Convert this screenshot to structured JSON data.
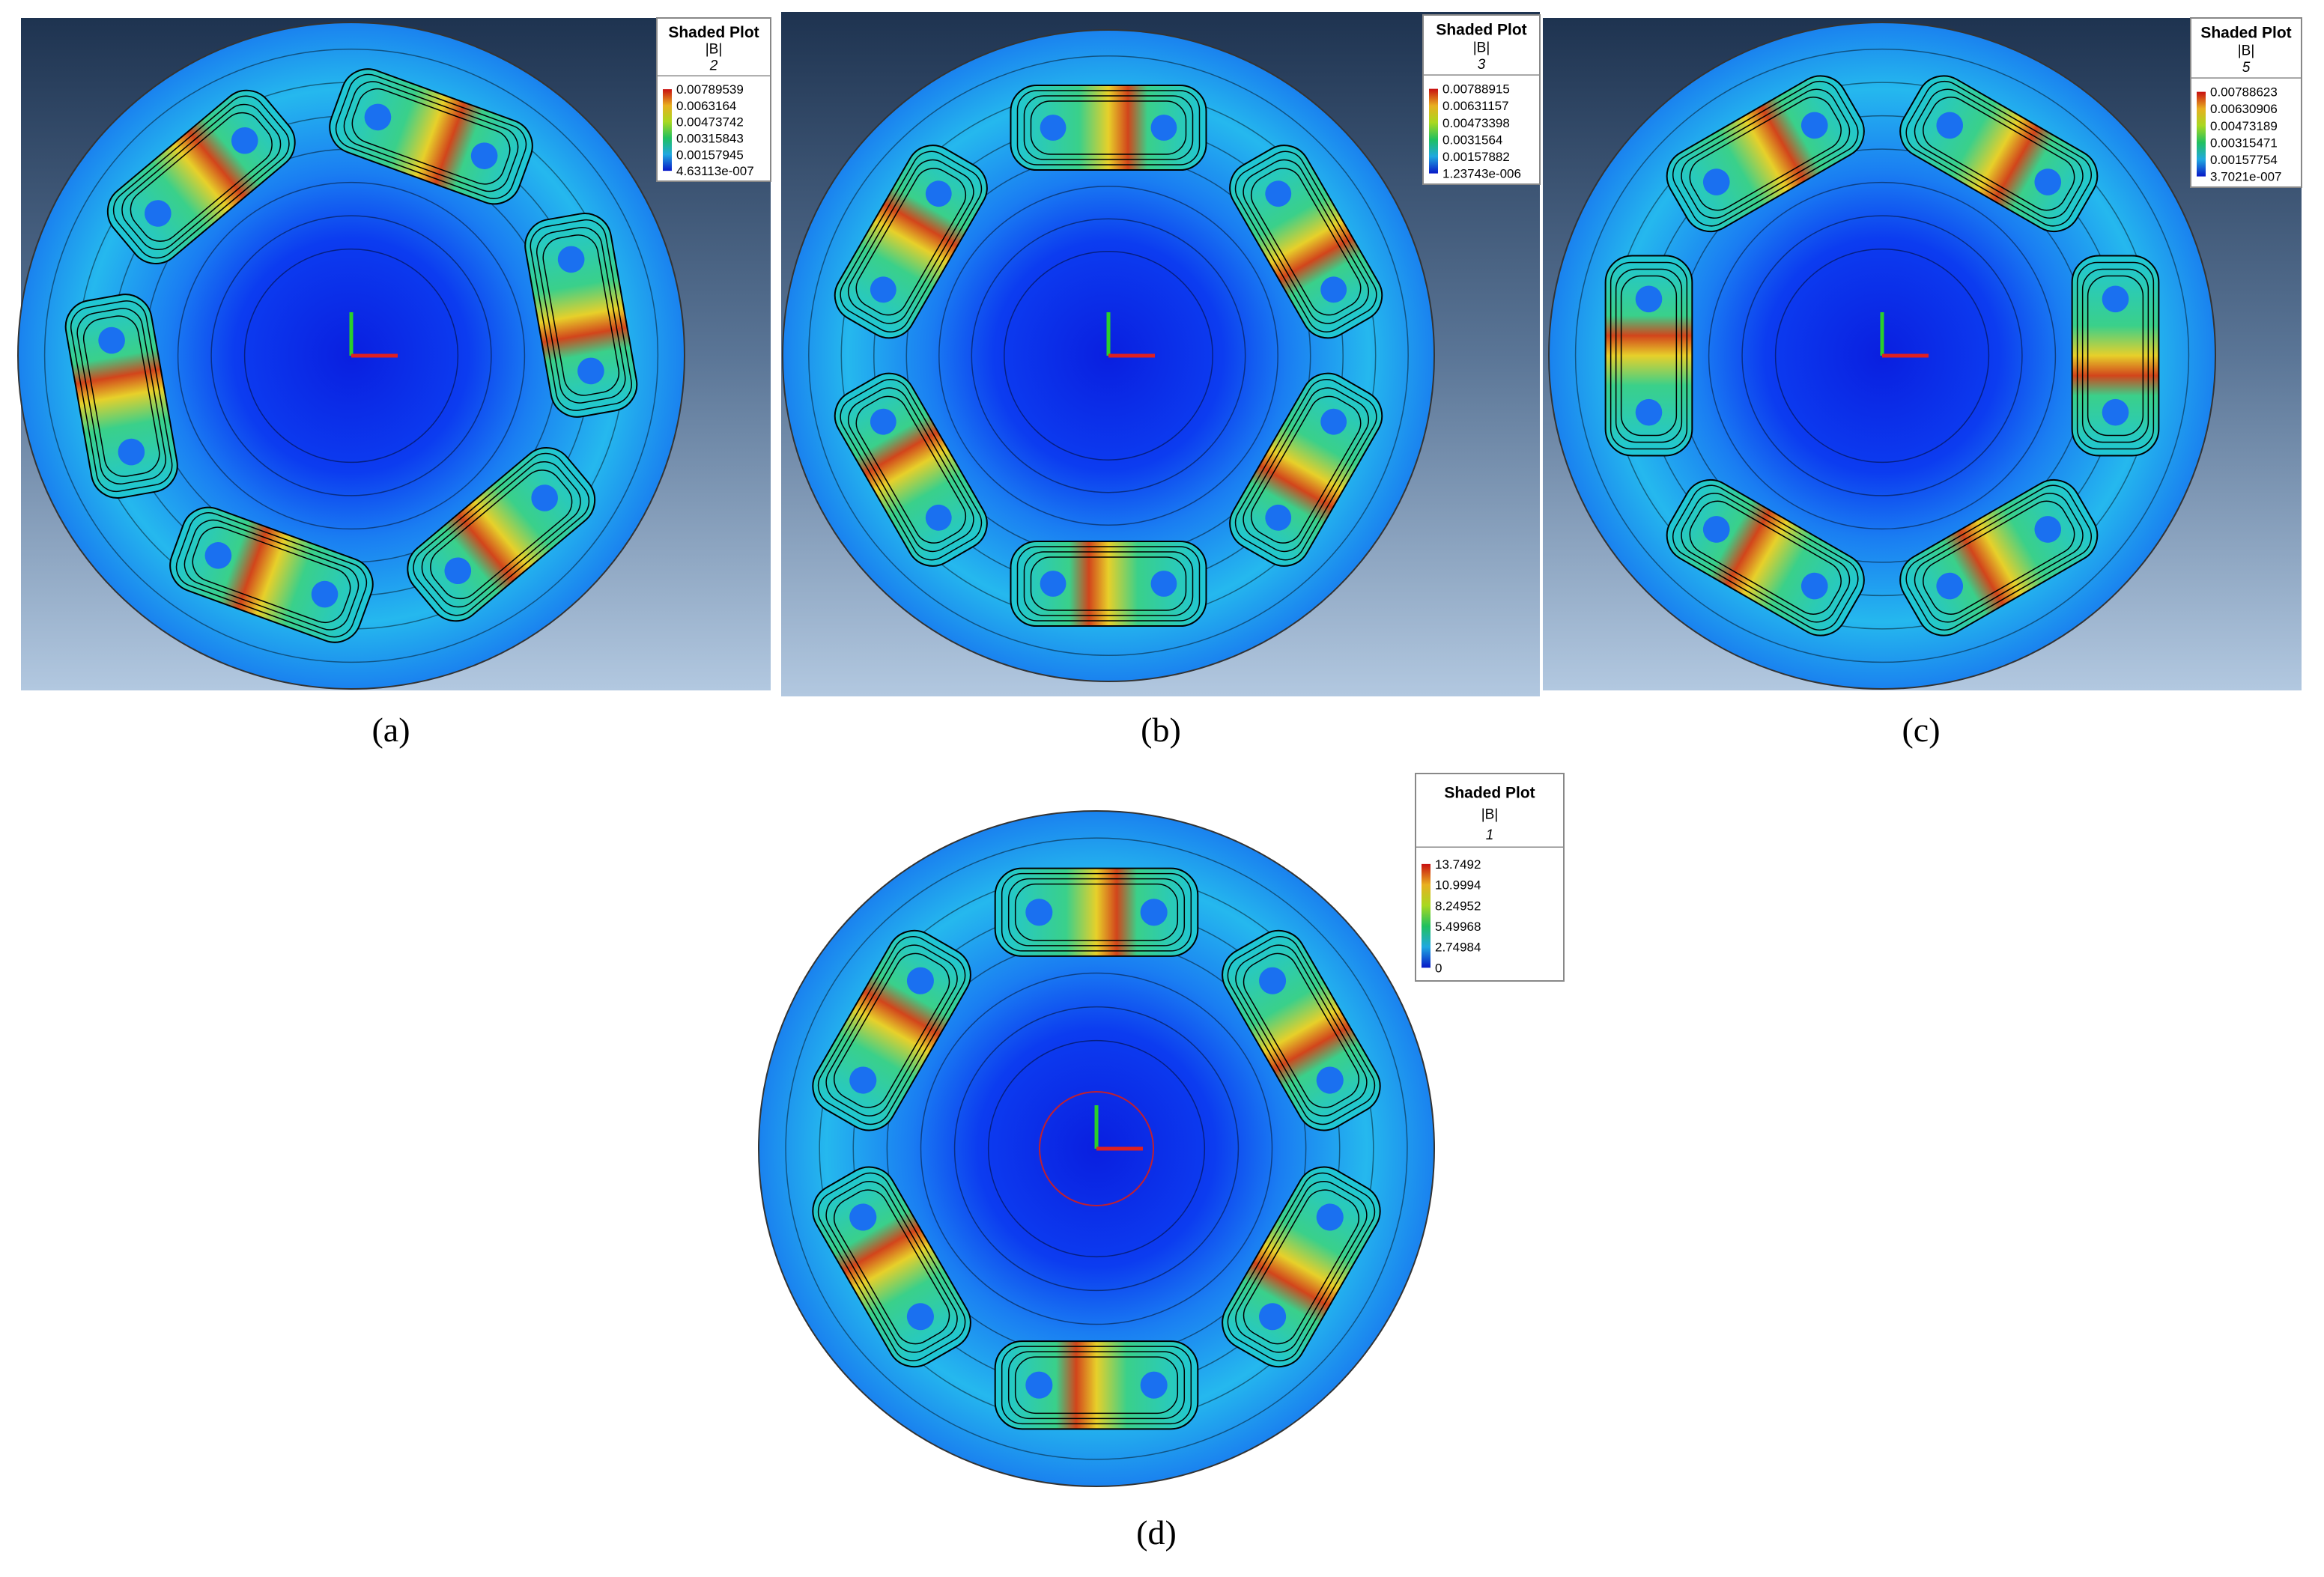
{
  "panels": [
    {
      "caption": "(a)",
      "legend": {
        "title": "Shaded Plot",
        "quantity": "|B|",
        "step": "2",
        "values": [
          "0.00789539",
          "0.0063164",
          "0.00473742",
          "0.00315843",
          "0.00157945",
          "4.63113e-007"
        ]
      }
    },
    {
      "caption": "(b)",
      "legend": {
        "title": "Shaded Plot",
        "quantity": "|B|",
        "step": "3",
        "values": [
          "0.00788915",
          "0.00631157",
          "0.00473398",
          "0.0031564",
          "0.00157882",
          "1.23743e-006"
        ]
      }
    },
    {
      "caption": "(c)",
      "legend": {
        "title": "Shaded Plot",
        "quantity": "|B|",
        "step": "5",
        "values": [
          "0.00788623",
          "0.00630906",
          "0.00473189",
          "0.00315471",
          "0.00157754",
          "3.7021e-007"
        ]
      }
    },
    {
      "caption": "(d)",
      "legend": {
        "title": "Shaded Plot",
        "quantity": "|B|",
        "step": "1",
        "values": [
          "13.7492",
          "10.9994",
          "8.24952",
          "5.49968",
          "2.74984",
          "0"
        ]
      }
    }
  ]
}
